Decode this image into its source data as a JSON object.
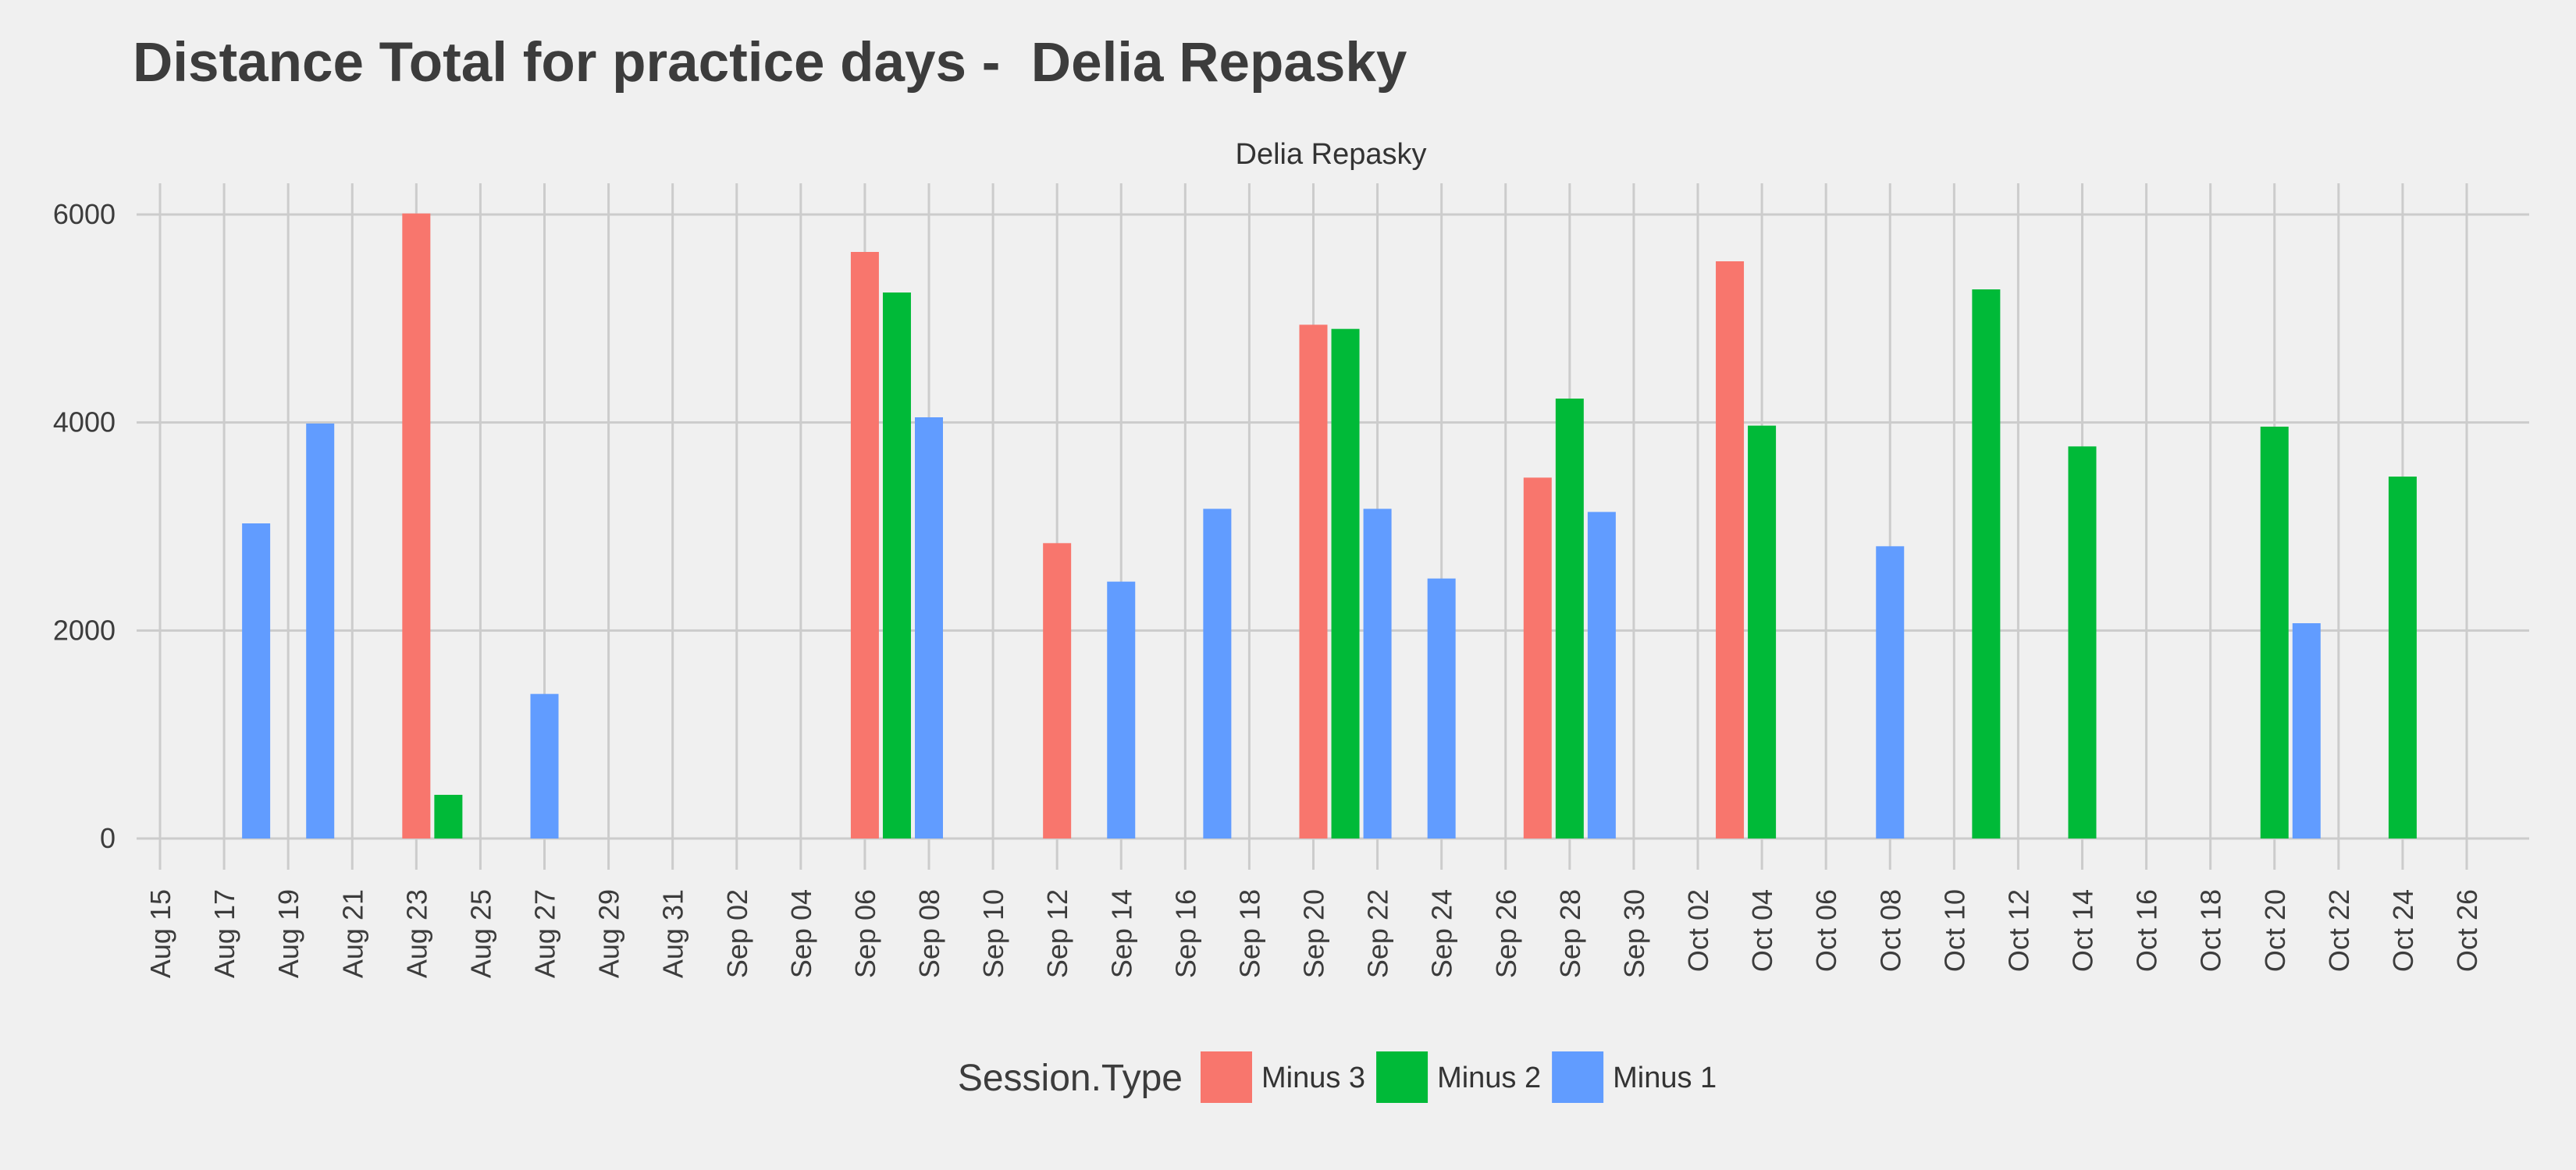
{
  "chart_data": {
    "type": "bar",
    "title": "Distance Total for practice days -  Delia Repasky",
    "facet_label": "Delia Repasky",
    "xlabel": "",
    "ylabel": "",
    "ylim": [
      -300,
      6300
    ],
    "y_ticks": [
      0,
      2000,
      4000,
      6000
    ],
    "x_start": "2019-08-15",
    "x_end": "2019-10-26",
    "x_ticks": [
      "Aug 15",
      "Aug 17",
      "Aug 19",
      "Aug 21",
      "Aug 23",
      "Aug 25",
      "Aug 27",
      "Aug 29",
      "Aug 31",
      "Sep 02",
      "Sep 04",
      "Sep 06",
      "Sep 08",
      "Sep 10",
      "Sep 12",
      "Sep 14",
      "Sep 16",
      "Sep 18",
      "Sep 20",
      "Sep 22",
      "Sep 24",
      "Sep 26",
      "Sep 28",
      "Sep 30",
      "Oct 02",
      "Oct 04",
      "Oct 06",
      "Oct 08",
      "Oct 10",
      "Oct 12",
      "Oct 14",
      "Oct 16",
      "Oct 18",
      "Oct 20",
      "Oct 22",
      "Oct 24",
      "Oct 26"
    ],
    "grid": true,
    "legend_position": "bottom",
    "legend_title": "Session.Type",
    "series": [
      {
        "name": "Minus 3",
        "color": "#F8766D",
        "points": [
          {
            "x": "2019-08-23",
            "y": 6010
          },
          {
            "x": "2019-09-06",
            "y": 5640
          },
          {
            "x": "2019-09-12",
            "y": 2840
          },
          {
            "x": "2019-09-20",
            "y": 4940
          },
          {
            "x": "2019-09-27",
            "y": 3470
          },
          {
            "x": "2019-10-03",
            "y": 5550
          }
        ]
      },
      {
        "name": "Minus 2",
        "color": "#00BA38",
        "points": [
          {
            "x": "2019-08-24",
            "y": 420
          },
          {
            "x": "2019-09-07",
            "y": 5250
          },
          {
            "x": "2019-09-21",
            "y": 4900
          },
          {
            "x": "2019-09-28",
            "y": 4230
          },
          {
            "x": "2019-10-04",
            "y": 3970
          },
          {
            "x": "2019-10-11",
            "y": 5280
          },
          {
            "x": "2019-10-14",
            "y": 3770
          },
          {
            "x": "2019-10-20",
            "y": 3960
          },
          {
            "x": "2019-10-24",
            "y": 3480
          }
        ]
      },
      {
        "name": "Minus 1",
        "color": "#619CFF",
        "points": [
          {
            "x": "2019-08-18",
            "y": 3030
          },
          {
            "x": "2019-08-20",
            "y": 3990
          },
          {
            "x": "2019-08-27",
            "y": 1390
          },
          {
            "x": "2019-09-08",
            "y": 4050
          },
          {
            "x": "2019-09-14",
            "y": 2470
          },
          {
            "x": "2019-09-17",
            "y": 3170
          },
          {
            "x": "2019-09-22",
            "y": 3170
          },
          {
            "x": "2019-09-24",
            "y": 2500
          },
          {
            "x": "2019-09-29",
            "y": 3140
          },
          {
            "x": "2019-10-08",
            "y": 2810
          },
          {
            "x": "2019-10-21",
            "y": 2070
          }
        ]
      }
    ]
  }
}
